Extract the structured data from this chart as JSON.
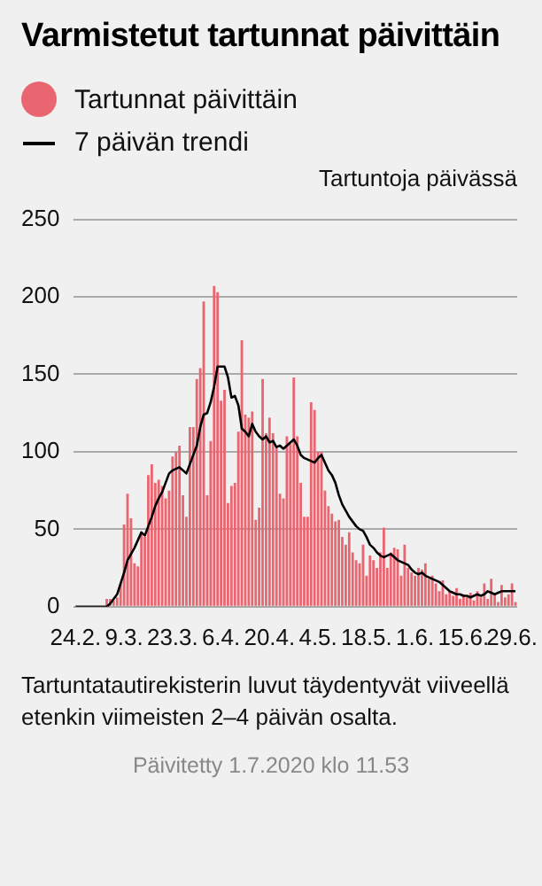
{
  "chart_data": {
    "type": "bar",
    "title": "Varmistetut tartunnat päivittäin",
    "ylabel": "Tartuntoja päivässä",
    "annotations": [
      "Tartuntatautirekisterin luvut täydentyvät viiveellä etenkin viimeisten 2–4 päivän osalta.",
      "Päivitetty 1.7.2020 klo 11.53"
    ],
    "categories": [
      "24.2.",
      null,
      null,
      null,
      null,
      null,
      null,
      null,
      null,
      null,
      null,
      null,
      null,
      null,
      "9.3.",
      null,
      null,
      null,
      null,
      null,
      null,
      null,
      null,
      null,
      null,
      null,
      null,
      null,
      "23.3.",
      null,
      null,
      null,
      null,
      null,
      null,
      null,
      null,
      null,
      null,
      null,
      null,
      null,
      "6.4.",
      null,
      null,
      null,
      null,
      null,
      null,
      null,
      null,
      null,
      null,
      null,
      null,
      null,
      "20.4.",
      null,
      null,
      null,
      null,
      null,
      null,
      null,
      null,
      null,
      null,
      null,
      null,
      null,
      "4.5.",
      null,
      null,
      null,
      null,
      null,
      null,
      null,
      null,
      null,
      null,
      null,
      null,
      null,
      "18.5.",
      null,
      null,
      null,
      null,
      null,
      null,
      null,
      null,
      null,
      null,
      null,
      null,
      null,
      "1.6.",
      null,
      null,
      null,
      null,
      null,
      null,
      null,
      null,
      null,
      null,
      null,
      null,
      null,
      "15.6.",
      null,
      null,
      null,
      null,
      null,
      null,
      null,
      null,
      null,
      null,
      null,
      null,
      null,
      "29.6.",
      null
    ],
    "series": [
      {
        "name": "Tartunnat päivittäin",
        "color": "#e96671",
        "values": [
          0,
          0,
          0,
          0,
          0,
          0,
          0,
          0,
          0,
          5,
          5,
          4,
          6,
          15,
          53,
          73,
          57,
          28,
          26,
          48,
          45,
          85,
          92,
          80,
          82,
          78,
          70,
          75,
          97,
          100,
          104,
          72,
          58,
          116,
          116,
          147,
          154,
          197,
          72,
          107,
          207,
          203,
          133,
          140,
          67,
          78,
          80,
          113,
          172,
          124,
          122,
          126,
          56,
          64,
          147,
          112,
          122,
          112,
          103,
          73,
          70,
          110,
          105,
          148,
          110,
          80,
          58,
          58,
          132,
          127,
          100,
          100,
          75,
          65,
          60,
          55,
          56,
          45,
          40,
          48,
          35,
          30,
          28,
          40,
          20,
          33,
          30,
          25,
          35,
          51,
          25,
          35,
          38,
          37,
          20,
          40,
          25,
          22,
          20,
          25,
          24,
          28,
          18,
          20,
          15,
          10,
          17,
          8,
          10,
          7,
          12,
          5,
          8,
          6,
          9,
          4,
          10,
          6,
          15,
          5,
          18,
          9,
          3,
          14,
          6,
          8,
          15,
          3
        ]
      },
      {
        "name": "7 päivän trendi",
        "type": "line",
        "color": "#000000",
        "marker": "none",
        "values": [
          0,
          0,
          0,
          0,
          0,
          0,
          0,
          0,
          0,
          0,
          2,
          5,
          8,
          15,
          22,
          30,
          34,
          38,
          43,
          48,
          46,
          52,
          58,
          65,
          70,
          74,
          80,
          86,
          88,
          89,
          90,
          88,
          86,
          92,
          98,
          104,
          116,
          124,
          125,
          132,
          142,
          155,
          155,
          155,
          148,
          135,
          136,
          130,
          115,
          113,
          110,
          118,
          113,
          110,
          108,
          110,
          106,
          107,
          103,
          104,
          102,
          104,
          106,
          108,
          104,
          98,
          96,
          95,
          94,
          93,
          96,
          98,
          93,
          88,
          85,
          80,
          72,
          66,
          62,
          58,
          55,
          52,
          50,
          49,
          45,
          40,
          38,
          35,
          33,
          32,
          33,
          34,
          32,
          30,
          29,
          28,
          27,
          24,
          22,
          21,
          22,
          20,
          19,
          18,
          17,
          16,
          14,
          12,
          10,
          9,
          8,
          8,
          7,
          7,
          6,
          7,
          8,
          7,
          8,
          10,
          9,
          8,
          9,
          10,
          10,
          10,
          10,
          10
        ]
      }
    ],
    "ylim": [
      0,
      250
    ],
    "yticks": [
      0,
      50,
      100,
      150,
      200,
      250
    ],
    "grid": "y",
    "legend": "top left"
  }
}
